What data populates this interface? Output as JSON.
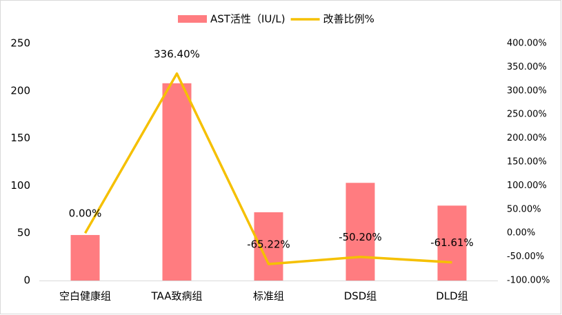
{
  "chart_data": {
    "type": "bar",
    "categories": [
      "空白健康组",
      "TAA致病组",
      "标准组",
      "DSD组",
      "DLD组"
    ],
    "series": [
      {
        "name": "AST活性（IU/L)",
        "type": "bar",
        "color": "#ff7c80",
        "values": [
          48,
          208,
          72,
          103,
          79
        ]
      },
      {
        "name": "改善比例%",
        "type": "line",
        "axis": "y2",
        "color": "#f5c000",
        "values": [
          0,
          336.4,
          -65.22,
          -50.2,
          -61.61
        ],
        "value_labels": [
          "0.00%",
          "336.40%",
          "-65.22%",
          "-50.20%",
          "-61.61%"
        ]
      }
    ],
    "ylim": [
      0,
      250
    ],
    "yticks": [
      0,
      50,
      100,
      150,
      200,
      250
    ],
    "y2lim": [
      -100,
      400
    ],
    "y2ticks": [
      {
        "value": -100,
        "label": "-100.00%"
      },
      {
        "value": -50,
        "label": "-50.00%"
      },
      {
        "value": 0,
        "label": "0.00%"
      },
      {
        "value": 50,
        "label": "50.00%"
      },
      {
        "value": 100,
        "label": "100.00%"
      },
      {
        "value": 150,
        "label": "150.00%"
      },
      {
        "value": 200,
        "label": "200.00%"
      },
      {
        "value": 250,
        "label": "250.00%"
      },
      {
        "value": 300,
        "label": "300.00%"
      },
      {
        "value": 350,
        "label": "350.00%"
      },
      {
        "value": 400,
        "label": "400.00%"
      }
    ],
    "legend": "top",
    "grid": false
  }
}
